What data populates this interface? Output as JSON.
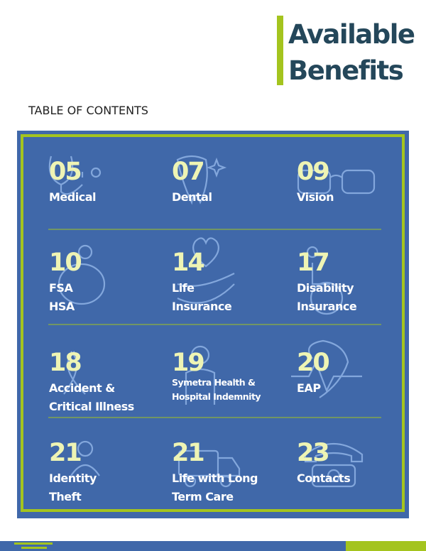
{
  "header": {
    "title": [
      "Available",
      "Benefits"
    ],
    "subtitle": "TABLE OF CONTENTS"
  },
  "items": [
    {
      "page": "05",
      "label": [
        "Medical"
      ]
    },
    {
      "page": "07",
      "label": [
        "Dental"
      ]
    },
    {
      "page": "09",
      "label": [
        "Vision"
      ]
    },
    {
      "page": "10",
      "label": [
        "FSA",
        "HSA"
      ]
    },
    {
      "page": "14",
      "label": [
        "Life",
        "Insurance"
      ]
    },
    {
      "page": "17",
      "label": [
        "Disability",
        "Insurance"
      ]
    },
    {
      "page": "18",
      "label": [
        "Accident &",
        "Critical Illness"
      ]
    },
    {
      "page": "19",
      "label": [
        "Symetra Health &",
        "Hospital Indemnity"
      ]
    },
    {
      "page": "20",
      "label": [
        "EAP"
      ]
    },
    {
      "page": "21",
      "label": [
        "Identity",
        "Theft"
      ]
    },
    {
      "page": "21",
      "label": [
        "Life with Long",
        "Term Care"
      ]
    },
    {
      "page": "23",
      "label": [
        "Contacts"
      ]
    }
  ]
}
